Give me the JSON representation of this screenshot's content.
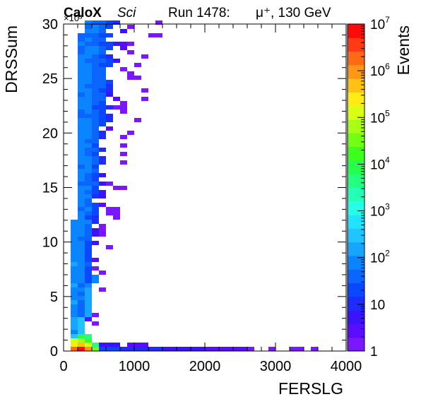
{
  "header": {
    "experiment_name": "CaloX",
    "experiment_tag": "Sci",
    "run_label": "Run 1478:",
    "beam": "μ⁺, 130 GeV"
  },
  "chart_data": {
    "type": "heatmap",
    "xlabel": "FERSLG",
    "ylabel": "DRSSum",
    "zlabel": "Events",
    "y_multiplier_label": "×10³",
    "xlim": [
      0,
      4000
    ],
    "ylim": [
      0,
      30
    ],
    "zlim": [
      1,
      10000000
    ],
    "z_scale": "log",
    "x_ticks": [
      0,
      1000,
      2000,
      3000,
      4000
    ],
    "y_ticks": [
      0,
      5,
      10,
      15,
      20,
      25,
      30
    ],
    "z_ticks": [
      {
        "value": 1,
        "label": "1"
      },
      {
        "value": 10,
        "label": "10"
      },
      {
        "value": 100,
        "label": "10",
        "exp": "2"
      },
      {
        "value": 1000,
        "label": "10",
        "exp": "3"
      },
      {
        "value": 10000,
        "label": "10",
        "exp": "4"
      },
      {
        "value": 100000,
        "label": "10",
        "exp": "5"
      },
      {
        "value": 1000000,
        "label": "10",
        "exp": "6"
      },
      {
        "value": 10000000,
        "label": "10",
        "exp": "7"
      }
    ],
    "palette": [
      "#7b16ff",
      "#5a0cff",
      "#3a14ff",
      "#1f2cff",
      "#0a48ff",
      "#0a66ff",
      "#0a84ff",
      "#17a5ff",
      "#21c4ff",
      "#21e2ff",
      "#25ffe8",
      "#25ffb5",
      "#25ff80",
      "#25ff4d",
      "#3eff1f",
      "#72ff14",
      "#a6ff14",
      "#d9ff14",
      "#ffec14",
      "#ffc214",
      "#ff9614",
      "#ff6a14",
      "#ff3a14",
      "#ff0a0a"
    ],
    "grid": false,
    "bins": {
      "x_bin_width": 40,
      "y_bin_width": 0.3,
      "regions": [
        {
          "name": "dense-band",
          "x_range": [
            150,
            700
          ],
          "y_range": [
            0.3,
            30
          ],
          "peak_events": 100
        },
        {
          "name": "low-drs-tail",
          "x_range": [
            200,
            3500
          ],
          "y_range": [
            0,
            0.6
          ],
          "peak_events": 30
        },
        {
          "name": "origin-peak",
          "x_range": [
            40,
            150
          ],
          "y_range": [
            0,
            1.0
          ],
          "peak_events": 10000000
        }
      ]
    }
  }
}
